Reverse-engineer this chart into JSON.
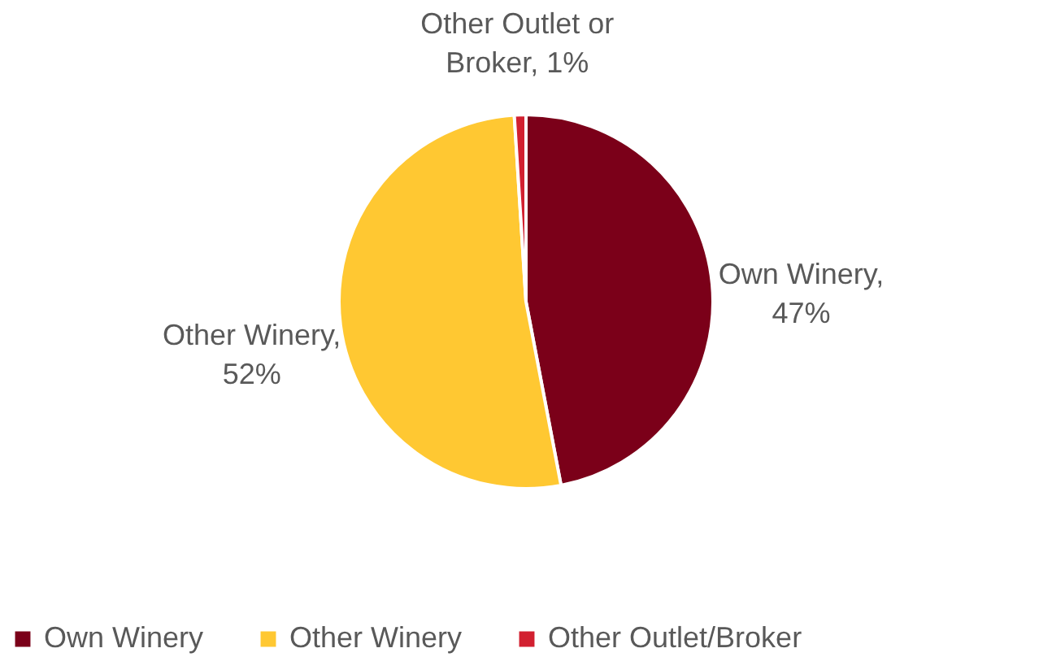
{
  "chart_data": {
    "type": "pie",
    "categories": [
      "Own Winery",
      "Other Winery",
      "Other Outlet/Broker"
    ],
    "values": [
      47,
      52,
      1
    ],
    "colors": [
      "#7b0019",
      "#ffc832",
      "#d22030"
    ],
    "value_labels": [
      "Own Winery, 47%",
      "Other Winery, 52%",
      "Other Outlet or Broker, 1%"
    ],
    "legend": "bottom"
  }
}
